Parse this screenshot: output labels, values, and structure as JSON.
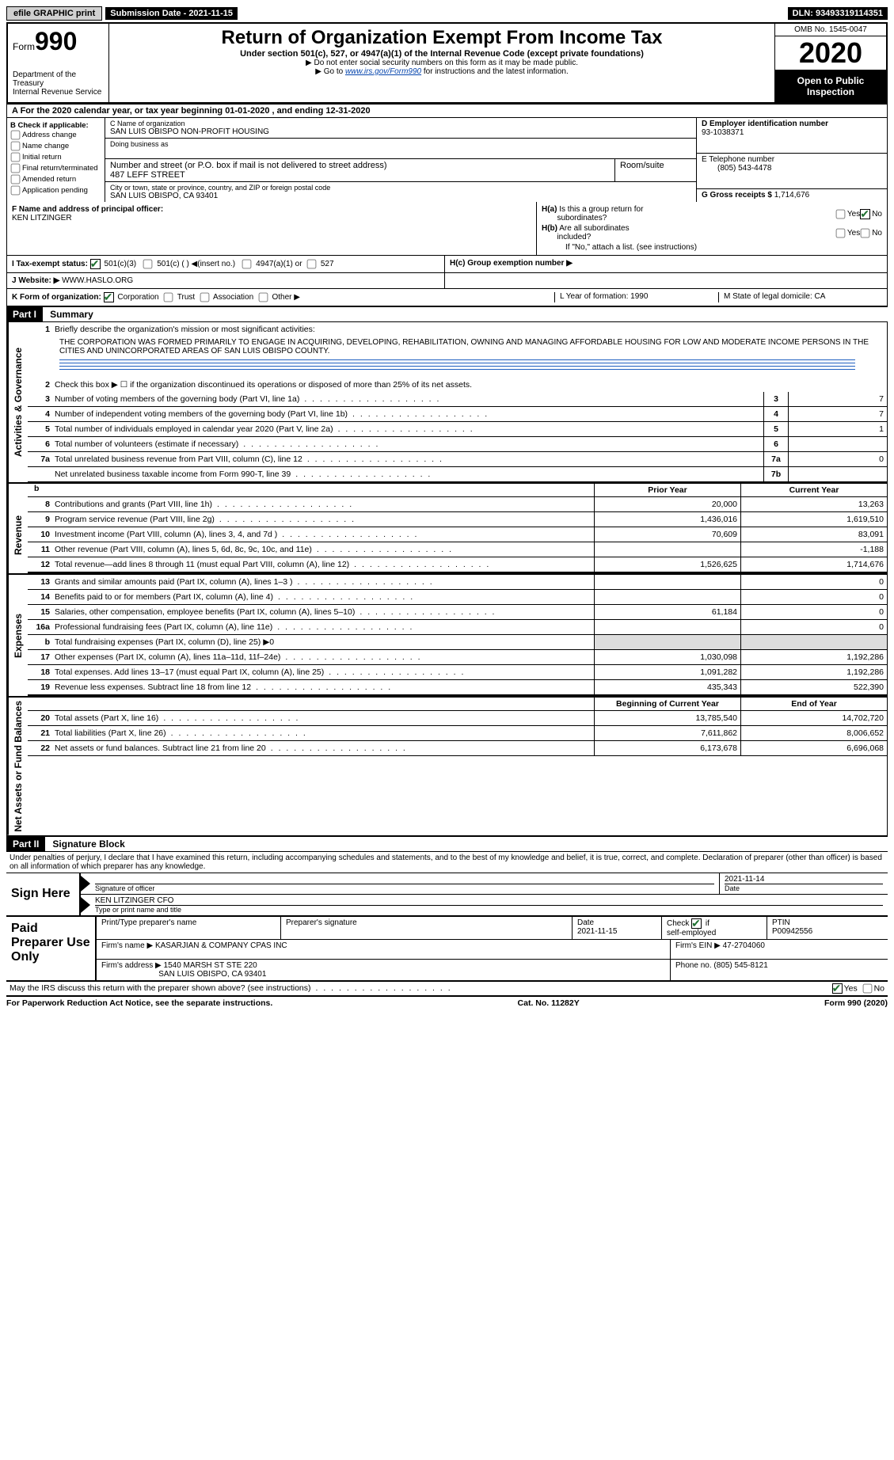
{
  "topbar": {
    "efile": "efile GRAPHIC print",
    "sub_label": "Submission Date - 2021-11-15",
    "dln": "DLN: 93493319114351"
  },
  "header": {
    "form_label": "Form",
    "form_num": "990",
    "dept": "Department of the Treasury\nInternal Revenue Service",
    "title": "Return of Organization Exempt From Income Tax",
    "subtitle": "Under section 501(c), 527, or 4947(a)(1) of the Internal Revenue Code (except private foundations)",
    "note1": "▶ Do not enter social security numbers on this form as it may be made public.",
    "note2": "▶ Go to www.irs.gov/Form990 for instructions and the latest information.",
    "omb": "OMB No. 1545-0047",
    "year": "2020",
    "open": "Open to Public Inspection"
  },
  "section_a": "A For the 2020 calendar year, or tax year beginning 01-01-2020    , and ending 12-31-2020",
  "box_b": {
    "title": "B Check if applicable:",
    "items": [
      "Address change",
      "Name change",
      "Initial return",
      "Final return/terminated",
      "Amended return",
      "Application pending"
    ]
  },
  "box_c": {
    "name_label": "C Name of organization",
    "name": "SAN LUIS OBISPO NON-PROFIT HOUSING",
    "dba_label": "Doing business as",
    "dba": "",
    "street_label": "Number and street (or P.O. box if mail is not delivered to street address)",
    "room_label": "Room/suite",
    "street": "487 LEFF STREET",
    "city_label": "City or town, state or province, country, and ZIP or foreign postal code",
    "city": "SAN LUIS OBISPO, CA  93401"
  },
  "box_d": {
    "ein_label": "D Employer identification number",
    "ein": "93-1038371",
    "phone_label": "E Telephone number",
    "phone": "(805) 543-4478",
    "gross_label": "G Gross receipts $",
    "gross": "1,714,676"
  },
  "box_f": {
    "label": "F  Name and address of principal officer:",
    "name": "KEN LITZINGER"
  },
  "box_h": {
    "ha": "H(a)  Is this a group return for subordinates?",
    "hb": "H(b)  Are all subordinates included?",
    "hb_note": "If \"No,\" attach a list. (see instructions)",
    "hc": "H(c)  Group exemption number ▶"
  },
  "row_i": {
    "label": "I  Tax-exempt status:",
    "opts": [
      "501(c)(3)",
      "501(c) (  ) ◀(insert no.)",
      "4947(a)(1) or",
      "527"
    ]
  },
  "row_j": {
    "label": "J  Website: ▶",
    "val": "WWW.HASLO.ORG"
  },
  "row_k": {
    "label": "K Form of organization:",
    "opts": [
      "Corporation",
      "Trust",
      "Association",
      "Other ▶"
    ],
    "l": "L Year of formation: 1990",
    "m": "M State of legal domicile: CA"
  },
  "part1": {
    "header": "Part I",
    "title": "Summary",
    "line1": "Briefly describe the organization's mission or most significant activities:",
    "mission": "THE CORPORATION WAS FORMED PRIMARILY TO ENGAGE IN ACQUIRING, DEVELOPING, REHABILITATION, OWNING AND MANAGING AFFORDABLE HOUSING FOR LOW AND MODERATE INCOME PERSONS IN THE CITIES AND UNINCORPORATED AREAS OF SAN LUIS OBISPO COUNTY.",
    "line2": "Check this box ▶ ☐ if the organization discontinued its operations or disposed of more than 25% of its net assets.",
    "rows_gov": [
      {
        "n": "3",
        "d": "Number of voting members of the governing body (Part VI, line 1a)",
        "box": "3",
        "v": "7"
      },
      {
        "n": "4",
        "d": "Number of independent voting members of the governing body (Part VI, line 1b)",
        "box": "4",
        "v": "7"
      },
      {
        "n": "5",
        "d": "Total number of individuals employed in calendar year 2020 (Part V, line 2a)",
        "box": "5",
        "v": "1"
      },
      {
        "n": "6",
        "d": "Total number of volunteers (estimate if necessary)",
        "box": "6",
        "v": ""
      },
      {
        "n": "7a",
        "d": "Total unrelated business revenue from Part VIII, column (C), line 12",
        "box": "7a",
        "v": "0"
      },
      {
        "n": "",
        "d": "Net unrelated business taxable income from Form 990-T, line 39",
        "box": "7b",
        "v": ""
      }
    ],
    "col_headers": {
      "b": "b",
      "prior": "Prior Year",
      "current": "Current Year"
    },
    "revenue": [
      {
        "n": "8",
        "d": "Contributions and grants (Part VIII, line 1h)",
        "p": "20,000",
        "c": "13,263"
      },
      {
        "n": "9",
        "d": "Program service revenue (Part VIII, line 2g)",
        "p": "1,436,016",
        "c": "1,619,510"
      },
      {
        "n": "10",
        "d": "Investment income (Part VIII, column (A), lines 3, 4, and 7d )",
        "p": "70,609",
        "c": "83,091"
      },
      {
        "n": "11",
        "d": "Other revenue (Part VIII, column (A), lines 5, 6d, 8c, 9c, 10c, and 11e)",
        "p": "",
        "c": "-1,188"
      },
      {
        "n": "12",
        "d": "Total revenue—add lines 8 through 11 (must equal Part VIII, column (A), line 12)",
        "p": "1,526,625",
        "c": "1,714,676"
      }
    ],
    "expenses": [
      {
        "n": "13",
        "d": "Grants and similar amounts paid (Part IX, column (A), lines 1–3 )",
        "p": "",
        "c": "0"
      },
      {
        "n": "14",
        "d": "Benefits paid to or for members (Part IX, column (A), line 4)",
        "p": "",
        "c": "0"
      },
      {
        "n": "15",
        "d": "Salaries, other compensation, employee benefits (Part IX, column (A), lines 5–10)",
        "p": "61,184",
        "c": "0"
      },
      {
        "n": "16a",
        "d": "Professional fundraising fees (Part IX, column (A), line 11e)",
        "p": "",
        "c": "0"
      },
      {
        "n": "b",
        "d": "Total fundraising expenses (Part IX, column (D), line 25) ▶0",
        "p": "grey",
        "c": "grey"
      },
      {
        "n": "17",
        "d": "Other expenses (Part IX, column (A), lines 11a–11d, 11f–24e)",
        "p": "1,030,098",
        "c": "1,192,286"
      },
      {
        "n": "18",
        "d": "Total expenses. Add lines 13–17 (must equal Part IX, column (A), line 25)",
        "p": "1,091,282",
        "c": "1,192,286"
      },
      {
        "n": "19",
        "d": "Revenue less expenses. Subtract line 18 from line 12",
        "p": "435,343",
        "c": "522,390"
      }
    ],
    "net_headers": {
      "b": "Beginning of Current Year",
      "e": "End of Year"
    },
    "netassets": [
      {
        "n": "20",
        "d": "Total assets (Part X, line 16)",
        "p": "13,785,540",
        "c": "14,702,720"
      },
      {
        "n": "21",
        "d": "Total liabilities (Part X, line 26)",
        "p": "7,611,862",
        "c": "8,006,652"
      },
      {
        "n": "22",
        "d": "Net assets or fund balances. Subtract line 21 from line 20",
        "p": "6,173,678",
        "c": "6,696,068"
      }
    ],
    "side": {
      "gov": "Activities & Governance",
      "rev": "Revenue",
      "exp": "Expenses",
      "net": "Net Assets or Fund Balances"
    }
  },
  "part2": {
    "header": "Part II",
    "title": "Signature Block",
    "decl": "Under penalties of perjury, I declare that I have examined this return, including accompanying schedules and statements, and to the best of my knowledge and belief, it is true, correct, and complete. Declaration of preparer (other than officer) is based on all information of which preparer has any knowledge.",
    "sign_here": "Sign Here",
    "sig_officer": "Signature of officer",
    "sig_date": "2021-11-14",
    "date_label": "Date",
    "officer_name": "KEN LITZINGER CFO",
    "type_name": "Type or print name and title",
    "paid_label": "Paid Preparer Use Only",
    "prep_name_label": "Print/Type preparer's name",
    "prep_sig_label": "Preparer's signature",
    "prep_date_label": "Date",
    "prep_date": "2021-11-15",
    "self_emp": "Check ☑ if self-employed",
    "ptin_label": "PTIN",
    "ptin": "P00942556",
    "firm_name_label": "Firm's name    ▶",
    "firm_name": "KASARJIAN & COMPANY CPAS INC",
    "firm_ein_label": "Firm's EIN ▶",
    "firm_ein": "47-2704060",
    "firm_addr_label": "Firm's address ▶",
    "firm_addr": "1540 MARSH ST STE 220\nSAN LUIS OBISPO, CA  93401",
    "firm_phone_label": "Phone no.",
    "firm_phone": "(805) 545-8121"
  },
  "footer": {
    "discuss": "May the IRS discuss this return with the preparer shown above? (see instructions)",
    "paperwork": "For Paperwork Reduction Act Notice, see the separate instructions.",
    "cat": "Cat. No. 11282Y",
    "form": "Form 990 (2020)"
  }
}
